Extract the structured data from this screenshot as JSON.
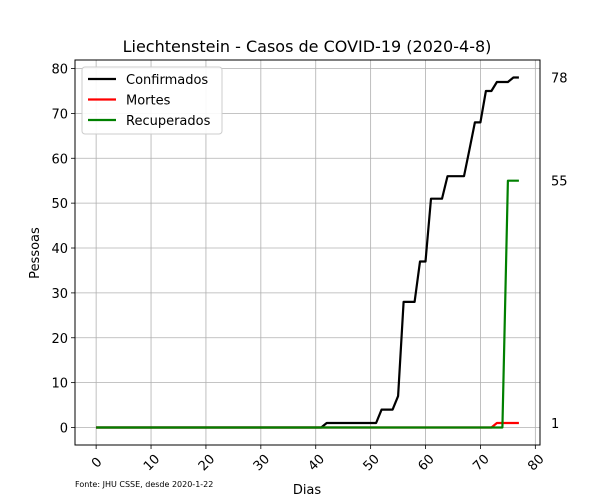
{
  "chart_data": {
    "type": "line",
    "title": "Liechtenstein - Casos de COVID-19 (2020-4-8)",
    "xlabel": "Dias",
    "ylabel": "Pessoas",
    "xlim": [
      -3.85,
      80.85
    ],
    "ylim": [
      -3.9,
      81.9
    ],
    "xticks": [
      0,
      10,
      20,
      30,
      40,
      50,
      60,
      70,
      80
    ],
    "yticks": [
      0,
      10,
      20,
      30,
      40,
      50,
      60,
      70,
      80
    ],
    "grid": true,
    "legend_position": "top-left",
    "source_note": "Fonte: JHU CSSE, desde 2020-1-22",
    "series": [
      {
        "name": "Confirmados",
        "color": "#000000",
        "points": [
          [
            0,
            0
          ],
          [
            41,
            0
          ],
          [
            42,
            1
          ],
          [
            51,
            1
          ],
          [
            52,
            4
          ],
          [
            54,
            4
          ],
          [
            55,
            7
          ],
          [
            56,
            28
          ],
          [
            58,
            28
          ],
          [
            59,
            37
          ],
          [
            60,
            37
          ],
          [
            61,
            51
          ],
          [
            63,
            51
          ],
          [
            64,
            56
          ],
          [
            67,
            56
          ],
          [
            68,
            62
          ],
          [
            69,
            68
          ],
          [
            70,
            68
          ],
          [
            71,
            75
          ],
          [
            72,
            75
          ],
          [
            73,
            77
          ],
          [
            75,
            77
          ],
          [
            76,
            78
          ],
          [
            77,
            78
          ]
        ],
        "end_label": "78"
      },
      {
        "name": "Mortes",
        "color": "#ff0000",
        "points": [
          [
            0,
            0
          ],
          [
            72,
            0
          ],
          [
            73,
            1
          ],
          [
            77,
            1
          ]
        ],
        "end_label": "1"
      },
      {
        "name": "Recuperados",
        "color": "#008000",
        "points": [
          [
            0,
            0
          ],
          [
            74,
            0
          ],
          [
            75,
            55
          ],
          [
            77,
            55
          ]
        ],
        "end_label": "55"
      }
    ]
  }
}
